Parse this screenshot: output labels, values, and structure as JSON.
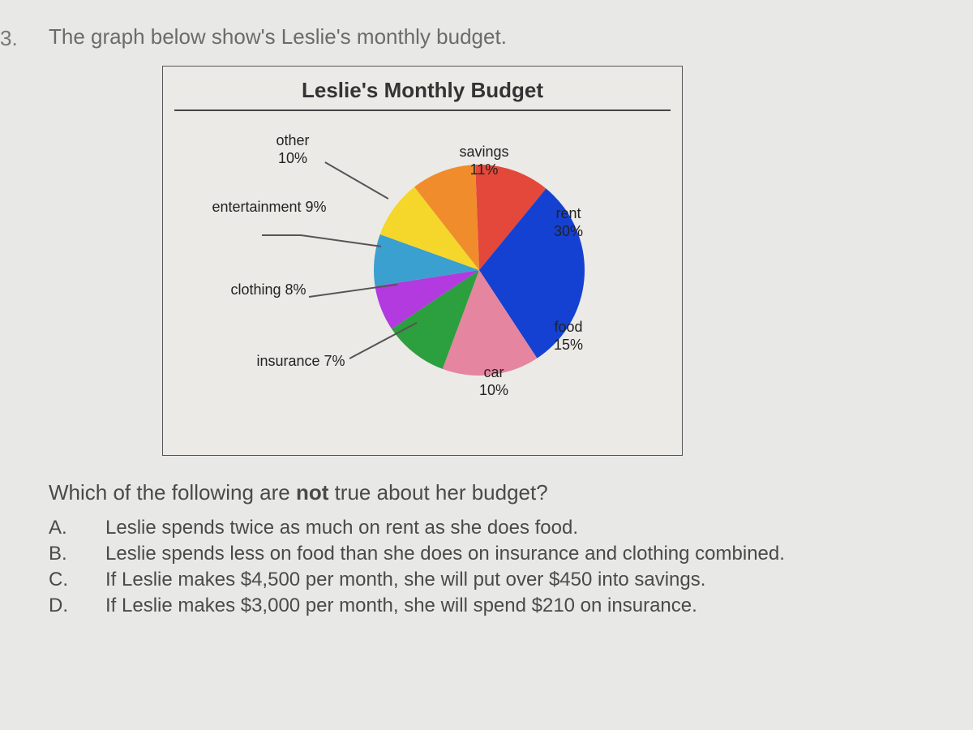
{
  "question_number": "3.",
  "intro_text": "The graph below show's Leslie's monthly budget.",
  "chart": {
    "type": "pie",
    "title": "Leslie's Monthly Budget",
    "background_color": "#eceae7",
    "border_color": "#555555",
    "title_fontsize": 26,
    "label_fontsize": 18,
    "label_color": "#222222",
    "segments": [
      {
        "name": "savings",
        "value": 11,
        "color": "#e4483a"
      },
      {
        "name": "rent",
        "value": 30,
        "color": "#1441d1"
      },
      {
        "name": "food",
        "value": 15,
        "color": "#e585a0"
      },
      {
        "name": "car",
        "value": 10,
        "color": "#2c9f3e"
      },
      {
        "name": "insurance",
        "value": 7,
        "color": "#b23ade"
      },
      {
        "name": "clothing",
        "value": 8,
        "color": "#3aa0d0"
      },
      {
        "name": "entertainment",
        "value": 9,
        "color": "#f5d72b"
      },
      {
        "name": "other",
        "value": 10,
        "color": "#f08c2c"
      }
    ],
    "labels_internal": {
      "savings_name": "savings",
      "savings_pct": "11%",
      "rent_name": "rent",
      "rent_pct": "30%",
      "food_name": "food",
      "food_pct": "15%",
      "car_name": "car",
      "car_pct": "10%"
    },
    "labels_external": {
      "other_name": "other",
      "other_pct": "10%",
      "entertainment_name": "entertainment",
      "entertainment_pct": "9%",
      "clothing_name": "clothing",
      "clothing_pct": "8%",
      "insurance_name": "insurance",
      "insurance_pct": "7%"
    }
  },
  "subquestion_prefix": "Which of the following are ",
  "subquestion_bold": "not",
  "subquestion_suffix": " true about her budget?",
  "choices": [
    {
      "letter": "A.",
      "text": "Leslie spends twice as much on rent as she does food."
    },
    {
      "letter": "B.",
      "text": "Leslie spends less on food than she does on insurance and clothing combined."
    },
    {
      "letter": "C.",
      "text": "If Leslie makes $4,500 per month, she will put over $450 into savings."
    },
    {
      "letter": "D.",
      "text": "If Leslie makes $3,000 per month, she will spend $210 on insurance."
    }
  ]
}
